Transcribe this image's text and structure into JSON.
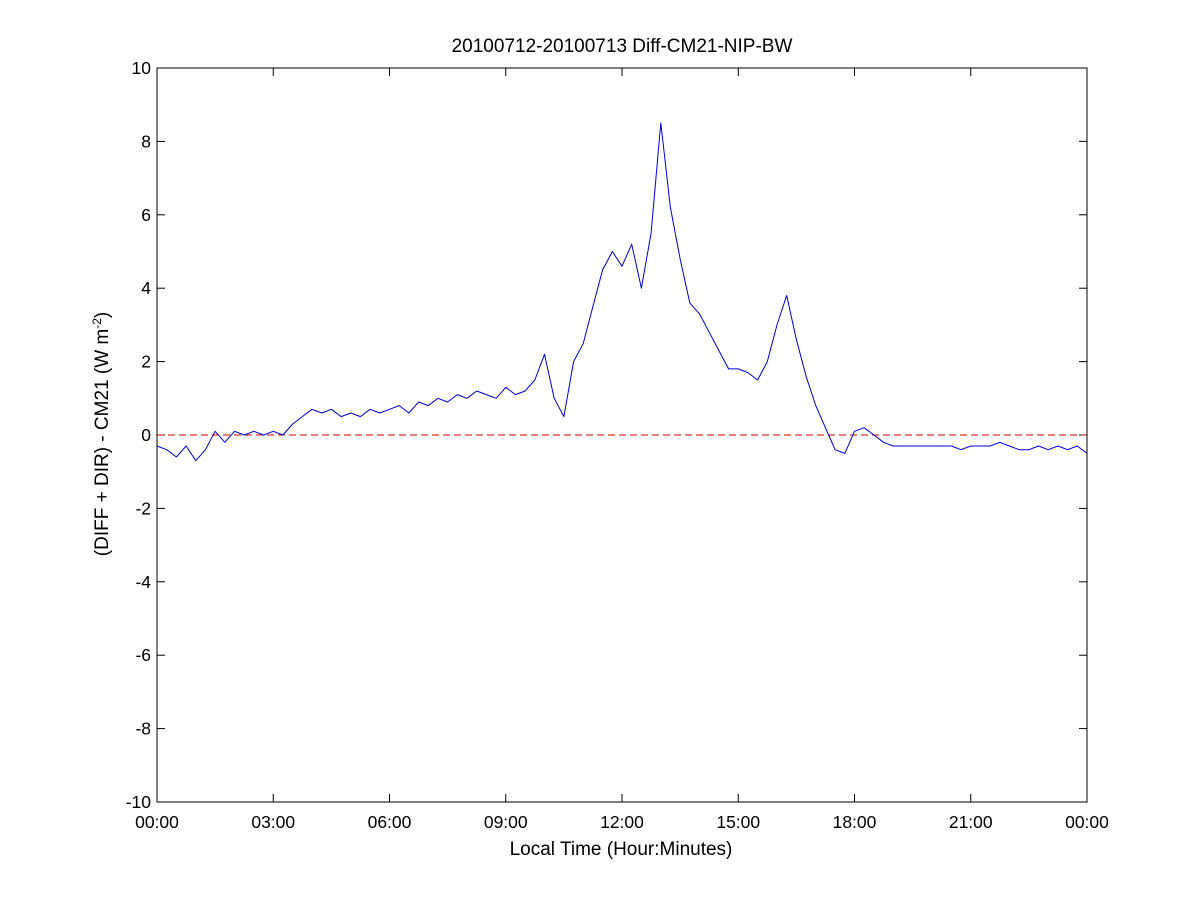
{
  "chart_data": {
    "type": "line",
    "title": "20100712-20100713 Diff-CM21-NIP-BW",
    "xlabel": "Local Time (Hour:Minutes)",
    "ylabel_main": "(DIFF + DIR) - CM21 (W m",
    "ylabel_sup": "-2",
    "ylabel_close": ")",
    "x_unit": "hours",
    "xlim": [
      0,
      24
    ],
    "ylim": [
      -10,
      10
    ],
    "x_ticks": [
      0,
      3,
      6,
      9,
      12,
      15,
      18,
      21,
      24
    ],
    "x_tick_labels": [
      "00:00",
      "03:00",
      "06:00",
      "09:00",
      "12:00",
      "15:00",
      "18:00",
      "21:00",
      "00:00"
    ],
    "y_ticks": [
      -10,
      -8,
      -6,
      -4,
      -2,
      0,
      2,
      4,
      6,
      8,
      10
    ],
    "y_tick_labels": [
      "-10",
      "-8",
      "-6",
      "-4",
      "-2",
      "0",
      "2",
      "4",
      "6",
      "8",
      "10"
    ],
    "grid": false,
    "reference_line": {
      "y": 0,
      "color": "#cc0000",
      "style": "dashed"
    },
    "series": [
      {
        "color": "#0000cc",
        "x": [
          0.0,
          0.25,
          0.5,
          0.75,
          1.0,
          1.25,
          1.5,
          1.75,
          2.0,
          2.25,
          2.5,
          2.75,
          3.0,
          3.25,
          3.5,
          3.75,
          4.0,
          4.25,
          4.5,
          4.75,
          5.0,
          5.25,
          5.5,
          5.75,
          6.0,
          6.25,
          6.5,
          6.75,
          7.0,
          7.25,
          7.5,
          7.75,
          8.0,
          8.25,
          8.5,
          8.75,
          9.0,
          9.25,
          9.5,
          9.75,
          10.0,
          10.25,
          10.5,
          10.75,
          11.0,
          11.25,
          11.5,
          11.75,
          12.0,
          12.25,
          12.5,
          12.75,
          13.0,
          13.25,
          13.5,
          13.75,
          14.0,
          14.25,
          14.5,
          14.75,
          15.0,
          15.25,
          15.5,
          15.75,
          16.0,
          16.25,
          16.5,
          16.75,
          17.0,
          17.25,
          17.5,
          17.75,
          18.0,
          18.25,
          18.5,
          18.75,
          19.0,
          19.25,
          19.5,
          19.75,
          20.0,
          20.25,
          20.5,
          20.75,
          21.0,
          21.25,
          21.5,
          21.75,
          22.0,
          22.25,
          22.5,
          22.75,
          23.0,
          23.25,
          23.5,
          23.75,
          24.0
        ],
        "y": [
          -0.3,
          -0.4,
          -0.6,
          -0.3,
          -0.7,
          -0.4,
          0.1,
          -0.2,
          0.1,
          0.0,
          0.1,
          0.0,
          0.1,
          0.0,
          0.3,
          0.5,
          0.7,
          0.6,
          0.7,
          0.5,
          0.6,
          0.5,
          0.7,
          0.6,
          0.7,
          0.8,
          0.6,
          0.9,
          0.8,
          1.0,
          0.9,
          1.1,
          1.0,
          1.2,
          1.1,
          1.0,
          1.3,
          1.1,
          1.2,
          1.5,
          2.2,
          1.0,
          0.5,
          2.0,
          2.5,
          3.5,
          4.5,
          5.0,
          4.6,
          5.2,
          4.0,
          5.5,
          8.5,
          6.2,
          4.8,
          3.6,
          3.3,
          2.8,
          2.3,
          1.8,
          1.8,
          1.7,
          1.5,
          2.0,
          3.0,
          3.8,
          2.6,
          1.6,
          0.8,
          0.2,
          -0.4,
          -0.5,
          0.1,
          0.2,
          0.0,
          -0.2,
          -0.3,
          -0.3,
          -0.3,
          -0.3,
          -0.3,
          -0.3,
          -0.3,
          -0.4,
          -0.3,
          -0.3,
          -0.3,
          -0.2,
          -0.3,
          -0.4,
          -0.4,
          -0.3,
          -0.4,
          -0.3,
          -0.4,
          -0.3,
          -0.5
        ]
      }
    ]
  }
}
